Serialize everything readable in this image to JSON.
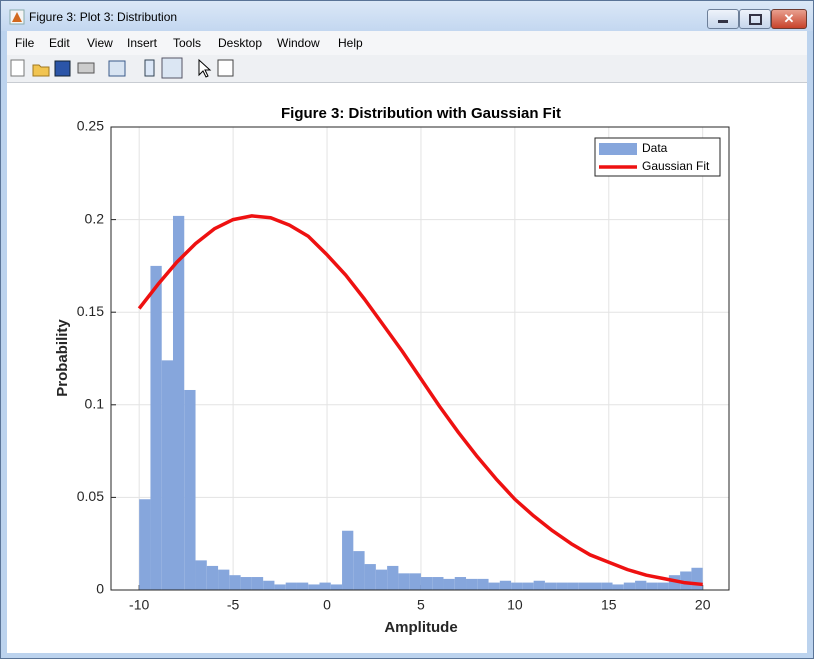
{
  "window": {
    "title": "Figure 3: Plot 3: Distribution"
  },
  "menu": [
    "File",
    "Edit",
    "View",
    "Insert",
    "Tools",
    "Desktop",
    "Window",
    "Help"
  ],
  "chart_data": {
    "type": "histogram",
    "title": "Figure 3: Distribution with Gaussian Fit",
    "x_label": "Amplitude",
    "y_label": "Probability",
    "bins": [
      -10,
      -9.4,
      -8.8,
      -8.2,
      -7.6,
      -7,
      -6.4,
      -5.8,
      -5.2,
      -4.6,
      -4,
      -3.4,
      -2.8,
      -2.2,
      -1.6,
      -1,
      -0.4,
      0.2,
      0.8,
      1.4,
      2,
      2.6,
      3.2,
      3.8,
      4.4,
      5,
      5.6,
      6.2,
      6.8,
      7.4,
      8,
      8.6,
      9.2,
      9.8,
      10.4,
      11,
      11.6,
      12.2,
      12.8,
      13.4,
      14,
      14.6,
      15.2,
      15.8,
      16.4,
      17,
      17.6,
      18.2,
      18.8,
      19.4,
      20
    ],
    "series": [
      {
        "name": "Data",
        "type": "histogram",
        "color": "#86a6dc",
        "values": [
          0.049,
          0.175,
          0.124,
          0.202,
          0.108,
          0.016,
          0.013,
          0.011,
          0.008,
          0.007,
          0.007,
          0.005,
          0.003,
          0.004,
          0.004,
          0.003,
          0.004,
          0.003,
          0.032,
          0.021,
          0.014,
          0.011,
          0.013,
          0.009,
          0.009,
          0.007,
          0.007,
          0.006,
          0.007,
          0.006,
          0.006,
          0.004,
          0.005,
          0.004,
          0.004,
          0.005,
          0.004,
          0.004,
          0.004,
          0.004,
          0.004,
          0.004,
          0.003,
          0.004,
          0.005,
          0.004,
          0.004,
          0.008,
          0.01,
          0.012
        ]
      },
      {
        "name": "Gaussian Fit",
        "type": "line",
        "color": "#ee1111",
        "x": [
          -10,
          -9,
          -8,
          -7,
          -6,
          -5,
          -4,
          -3,
          -2,
          -1,
          0,
          1,
          2,
          3,
          4,
          5,
          6,
          7,
          8,
          9,
          10,
          11,
          12,
          13,
          14,
          15,
          16,
          17,
          18,
          19,
          20
        ],
        "values": [
          0.152,
          0.165,
          0.177,
          0.187,
          0.195,
          0.2,
          0.202,
          0.201,
          0.197,
          0.191,
          0.181,
          0.17,
          0.157,
          0.143,
          0.129,
          0.114,
          0.099,
          0.085,
          0.072,
          0.06,
          0.049,
          0.04,
          0.032,
          0.025,
          0.019,
          0.015,
          0.011,
          0.008,
          0.006,
          0.004,
          0.003
        ]
      }
    ],
    "xlim": [
      -11.5,
      21.4
    ],
    "ylim": [
      0,
      0.25
    ],
    "xticks": [
      -10,
      -5,
      0,
      5,
      10,
      15,
      20
    ],
    "yticks": [
      0,
      0.05,
      0.1,
      0.15,
      0.2,
      0.25
    ],
    "grid": true,
    "legend": "upper-right"
  }
}
